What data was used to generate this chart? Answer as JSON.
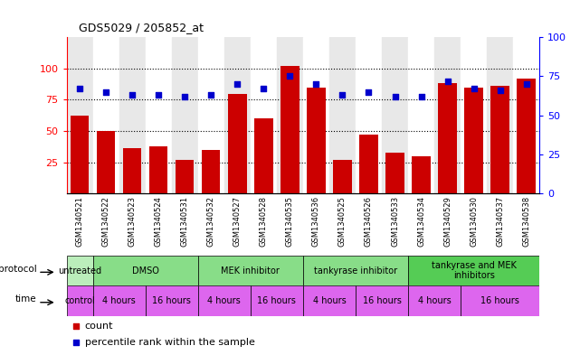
{
  "title": "GDS5029 / 205852_at",
  "samples": [
    "GSM1340521",
    "GSM1340522",
    "GSM1340523",
    "GSM1340524",
    "GSM1340531",
    "GSM1340532",
    "GSM1340527",
    "GSM1340528",
    "GSM1340535",
    "GSM1340536",
    "GSM1340525",
    "GSM1340526",
    "GSM1340533",
    "GSM1340534",
    "GSM1340529",
    "GSM1340530",
    "GSM1340537",
    "GSM1340538"
  ],
  "counts": [
    62,
    50,
    36,
    38,
    27,
    35,
    80,
    60,
    102,
    85,
    27,
    47,
    33,
    30,
    88,
    85,
    86,
    92
  ],
  "percentiles": [
    67,
    65,
    63,
    63,
    62,
    63,
    70,
    67,
    75,
    70,
    63,
    65,
    62,
    62,
    72,
    67,
    66,
    70
  ],
  "ylim_left": [
    0,
    125
  ],
  "ylim_right": [
    0,
    100
  ],
  "yticks_left": [
    25,
    50,
    75,
    100
  ],
  "yticks_right": [
    0,
    25,
    50,
    75,
    100
  ],
  "bar_color": "#CC0000",
  "dot_color": "#0000CC",
  "protocol_groups": [
    {
      "label": "untreated",
      "start": 0,
      "end": 1,
      "color": "#bbeebb"
    },
    {
      "label": "DMSO",
      "start": 1,
      "end": 5,
      "color": "#88ee88"
    },
    {
      "label": "MEK inhibitor",
      "start": 5,
      "end": 9,
      "color": "#88ee88"
    },
    {
      "label": "tankyrase inhibitor",
      "start": 9,
      "end": 13,
      "color": "#88ee88"
    },
    {
      "label": "tankyrase and MEK\ninhibitors",
      "start": 13,
      "end": 18,
      "color": "#55dd55"
    }
  ],
  "time_groups": [
    {
      "label": "control",
      "start": 0,
      "end": 1,
      "color": "#dd66dd"
    },
    {
      "label": "4 hours",
      "start": 1,
      "end": 3,
      "color": "#dd66dd"
    },
    {
      "label": "16 hours",
      "start": 3,
      "end": 5,
      "color": "#dd66dd"
    },
    {
      "label": "4 hours",
      "start": 5,
      "end": 7,
      "color": "#dd66dd"
    },
    {
      "label": "16 hours",
      "start": 7,
      "end": 9,
      "color": "#dd66dd"
    },
    {
      "label": "4 hours",
      "start": 9,
      "end": 11,
      "color": "#dd66dd"
    },
    {
      "label": "16 hours",
      "start": 11,
      "end": 13,
      "color": "#dd66dd"
    },
    {
      "label": "4 hours",
      "start": 13,
      "end": 15,
      "color": "#dd66dd"
    },
    {
      "label": "16 hours",
      "start": 15,
      "end": 18,
      "color": "#dd66dd"
    }
  ],
  "bg_colors": [
    "#e8e8e8",
    "#ffffff",
    "#e8e8e8",
    "#ffffff",
    "#e8e8e8",
    "#ffffff",
    "#e8e8e8",
    "#ffffff",
    "#e8e8e8",
    "#ffffff",
    "#e8e8e8",
    "#ffffff",
    "#e8e8e8",
    "#ffffff",
    "#e8e8e8",
    "#ffffff",
    "#e8e8e8",
    "#ffffff"
  ]
}
